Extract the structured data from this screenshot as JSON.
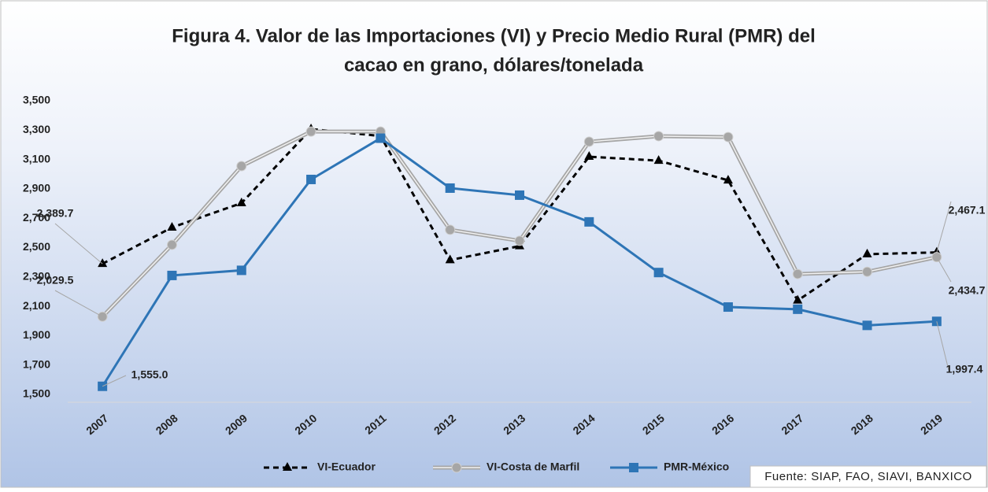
{
  "chart_data": {
    "type": "line",
    "title": [
      "Figura 4. Valor de las Importaciones (VI) y Precio Medio Rural (PMR) del",
      "cacao en grano, dólares/tonelada"
    ],
    "categories": [
      "2007",
      "2008",
      "2009",
      "2010",
      "2011",
      "2012",
      "2013",
      "2014",
      "2015",
      "2016",
      "2017",
      "2018",
      "2019"
    ],
    "series": [
      {
        "name": "VI-Ecuador",
        "color": "#000000",
        "marker": "triangle",
        "dashed": true,
        "values": [
          2389.7,
          2637,
          2803,
          3307,
          3260,
          2415,
          2510,
          3119,
          3092,
          2958,
          2140,
          2455,
          2467.1
        ],
        "value_labels": [
          "2,389.7",
          null,
          null,
          null,
          null,
          null,
          null,
          null,
          null,
          null,
          null,
          null,
          "2,467.1"
        ]
      },
      {
        "name": "VI-Costa de Marfil",
        "color": "#a6a6a6",
        "marker": "circle",
        "dashed": false,
        "values": [
          2029.5,
          2519,
          3055,
          3290,
          3290,
          2621,
          2546,
          3221,
          3259,
          3253,
          2320,
          2335,
          2434.7
        ],
        "value_labels": [
          "2,029.5",
          null,
          null,
          null,
          null,
          null,
          null,
          null,
          null,
          null,
          null,
          null,
          "2,434.7"
        ]
      },
      {
        "name": "PMR-México",
        "color": "#2e75b6",
        "marker": "square",
        "dashed": false,
        "values": [
          1555.0,
          2310,
          2345,
          2964,
          3245,
          2905,
          2857,
          2675,
          2330,
          2095,
          2080,
          1970,
          1997.4
        ],
        "value_labels": [
          "1,555.0",
          null,
          null,
          null,
          null,
          null,
          null,
          null,
          null,
          null,
          null,
          null,
          "1,997.4"
        ]
      }
    ],
    "ylim": [
      1500,
      3500
    ],
    "yticks": [
      {
        "value": 1500,
        "label": "1,500"
      },
      {
        "value": 1700,
        "label": "1,700"
      },
      {
        "value": 1900,
        "label": "1,900"
      },
      {
        "value": 2100,
        "label": "2,100"
      },
      {
        "value": 2300,
        "label": "2,300"
      },
      {
        "value": 2500,
        "label": "2,500"
      },
      {
        "value": 2700,
        "label": "2,700"
      },
      {
        "value": 2900,
        "label": "2,900"
      },
      {
        "value": 3100,
        "label": "3,100"
      },
      {
        "value": 3300,
        "label": "3,300"
      },
      {
        "value": 3500,
        "label": "3,500"
      }
    ],
    "grid": false,
    "legend": "bottom",
    "source": "Fuente: SIAP, FAO, SIAVI, BANXICO"
  }
}
